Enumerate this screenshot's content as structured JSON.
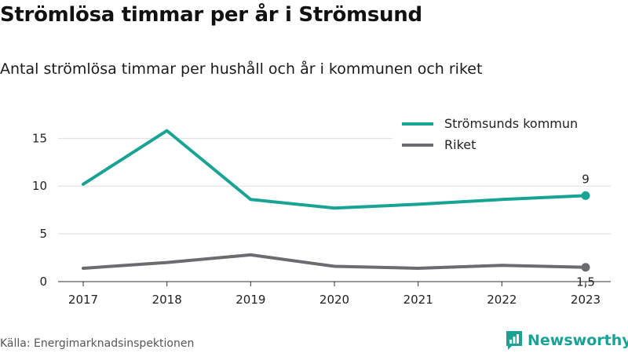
{
  "header": {
    "title": "Strömlösa timmar per år i Strömsund",
    "subtitle": "Antal strömlösa timmar per hushåll och år i kommunen och riket"
  },
  "footer": {
    "source": "Källa: Energimarknadsinspektionen",
    "brand": "Newsworthy"
  },
  "colors": {
    "stromsund": "#18a394",
    "riket": "#6b6b70",
    "grid": "#dddddd"
  },
  "chart_data": {
    "type": "line",
    "x": [
      "2017",
      "2018",
      "2019",
      "2020",
      "2021",
      "2022",
      "2023"
    ],
    "series": [
      {
        "name": "Strömsunds kommun",
        "values": [
          10.2,
          15.8,
          8.6,
          7.7,
          8.1,
          8.6,
          9.0
        ],
        "end_label": "9"
      },
      {
        "name": "Riket",
        "values": [
          1.4,
          2.0,
          2.8,
          1.6,
          1.4,
          1.7,
          1.5
        ],
        "end_label": "1,5"
      }
    ],
    "yticks": [
      0,
      5,
      10,
      15
    ],
    "ylim": [
      0,
      17
    ],
    "grid": true,
    "legend": "top-right"
  }
}
